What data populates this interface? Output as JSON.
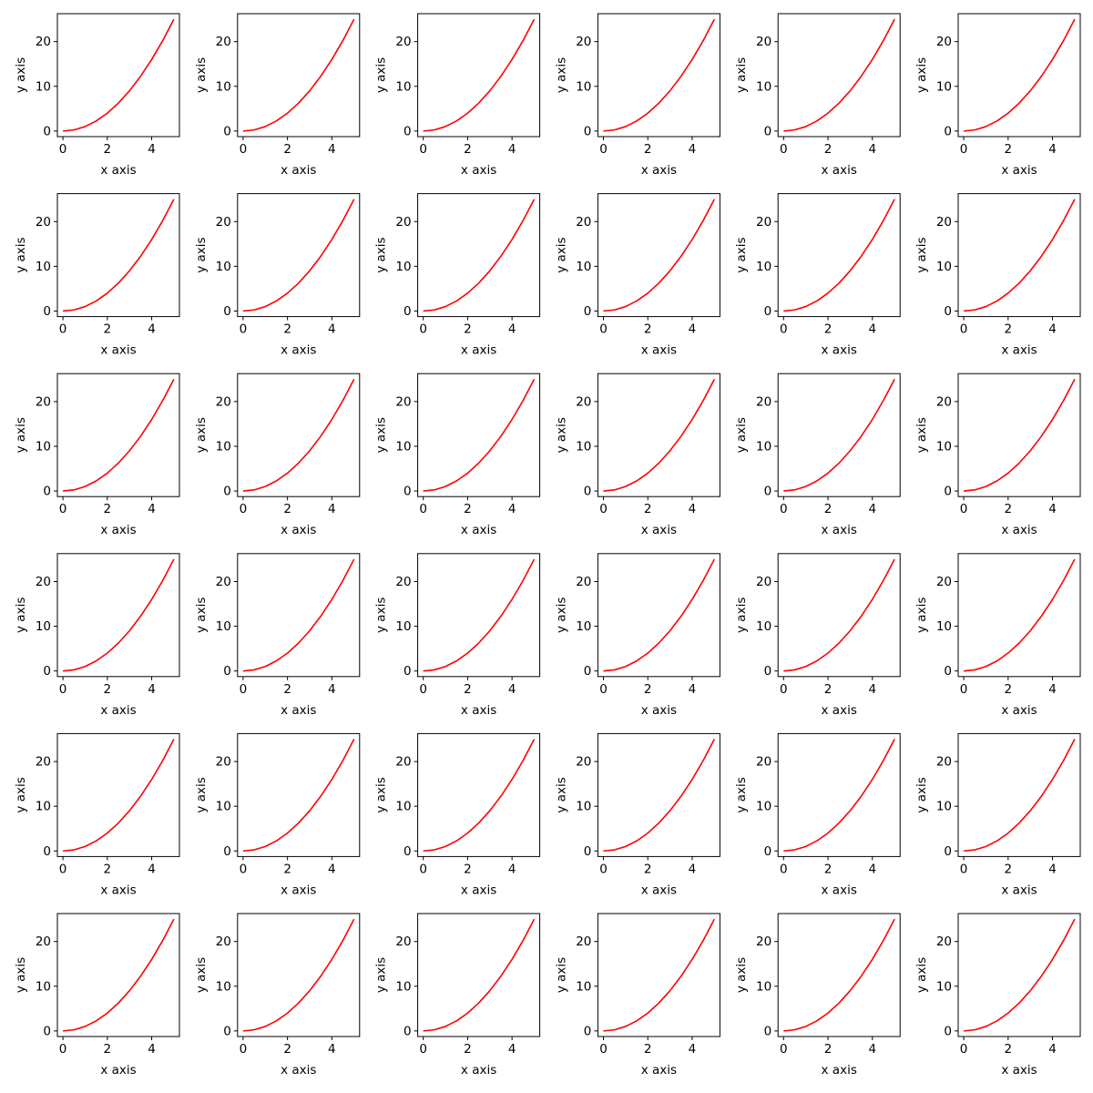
{
  "figure": {
    "grid": {
      "rows": 6,
      "cols": 6
    }
  },
  "colors": {
    "line": "#ff0000",
    "axes": "#000000",
    "background": "#ffffff"
  },
  "chart_data": {
    "type": "line",
    "subplot_count": 36,
    "xlabel": "x axis",
    "ylabel": "y axis",
    "xlim": [
      -0.25,
      5.25
    ],
    "ylim": [
      -1.25,
      26.25
    ],
    "xticks": [
      0,
      2,
      4
    ],
    "xtick_labels": [
      "0",
      "2",
      "4"
    ],
    "yticks": [
      0,
      10,
      20
    ],
    "ytick_labels": [
      "0",
      "10",
      "20"
    ],
    "grid": false,
    "legend": "none",
    "series": [
      {
        "x": [
          0,
          0.5,
          1,
          1.5,
          2,
          2.5,
          3,
          3.5,
          4,
          4.5,
          5
        ],
        "y": [
          0,
          0.25,
          1,
          2.25,
          4,
          6.25,
          9,
          12.25,
          16,
          20.25,
          25
        ],
        "color": "#ff0000"
      }
    ]
  }
}
